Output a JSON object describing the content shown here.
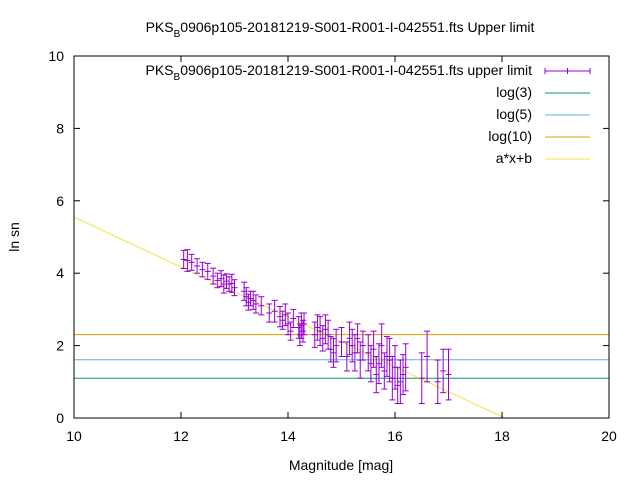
{
  "chart_data": {
    "type": "scatter",
    "title": {
      "prefix": "PKS",
      "sub": "B",
      "suffix": "0906p105-20181219-S001-R001-I-042551.fts Upper limit"
    },
    "xlabel": "Magnitude [mag]",
    "ylabel": "ln sn",
    "xlim": [
      10,
      20
    ],
    "ylim": [
      0,
      10
    ],
    "x_ticks": [
      "10",
      "12",
      "14",
      "16",
      "18",
      "20"
    ],
    "y_ticks": [
      "0",
      "2",
      "4",
      "6",
      "8",
      "10"
    ],
    "grid": false,
    "legend_position": "top-right",
    "series": [
      {
        "name": {
          "prefix": "PKS",
          "sub": "B",
          "suffix": "0906p105-20181219-S001-R001-I-042551.fts upper limit"
        },
        "kind": "errorbar",
        "color": "#9400d3",
        "points": [
          [
            12.05,
            4.38,
            0.25
          ],
          [
            12.12,
            4.35,
            0.3
          ],
          [
            12.2,
            4.3,
            0.22
          ],
          [
            12.3,
            4.2,
            0.2
          ],
          [
            12.4,
            4.1,
            0.2
          ],
          [
            12.5,
            4.05,
            0.22
          ],
          [
            12.6,
            3.92,
            0.22
          ],
          [
            12.68,
            3.8,
            0.2
          ],
          [
            12.75,
            3.85,
            0.22
          ],
          [
            12.8,
            3.7,
            0.25
          ],
          [
            12.85,
            3.78,
            0.2
          ],
          [
            12.9,
            3.7,
            0.2
          ],
          [
            12.95,
            3.72,
            0.25
          ],
          [
            13.0,
            3.6,
            0.22
          ],
          [
            13.18,
            3.5,
            0.25
          ],
          [
            13.22,
            3.35,
            0.25
          ],
          [
            13.26,
            3.2,
            0.22
          ],
          [
            13.3,
            3.3,
            0.2
          ],
          [
            13.35,
            3.25,
            0.25
          ],
          [
            13.4,
            3.15,
            0.25
          ],
          [
            13.5,
            3.1,
            0.25
          ],
          [
            13.65,
            2.9,
            0.25
          ],
          [
            13.75,
            2.95,
            0.3
          ],
          [
            13.85,
            2.8,
            0.28
          ],
          [
            13.9,
            2.7,
            0.25
          ],
          [
            13.95,
            2.85,
            0.3
          ],
          [
            14.0,
            2.6,
            0.3
          ],
          [
            14.05,
            2.4,
            0.25
          ],
          [
            14.1,
            2.75,
            0.25
          ],
          [
            14.2,
            2.5,
            0.3
          ],
          [
            14.22,
            2.3,
            0.3
          ],
          [
            14.25,
            2.55,
            0.35
          ],
          [
            14.28,
            2.4,
            0.3
          ],
          [
            14.3,
            2.6,
            0.3
          ],
          [
            14.5,
            2.3,
            0.35
          ],
          [
            14.55,
            2.5,
            0.35
          ],
          [
            14.6,
            2.4,
            0.4
          ],
          [
            14.65,
            2.2,
            0.35
          ],
          [
            14.7,
            2.45,
            0.4
          ],
          [
            14.75,
            2.3,
            0.4
          ],
          [
            14.8,
            1.9,
            0.35
          ],
          [
            14.85,
            1.8,
            0.4
          ],
          [
            14.9,
            2.0,
            0.45
          ],
          [
            15.0,
            2.1,
            0.4
          ],
          [
            15.1,
            1.7,
            0.4
          ],
          [
            15.15,
            2.2,
            0.45
          ],
          [
            15.2,
            2.0,
            0.45
          ],
          [
            15.25,
            1.8,
            0.5
          ],
          [
            15.3,
            2.2,
            0.4
          ],
          [
            15.35,
            1.6,
            0.5
          ],
          [
            15.4,
            2.0,
            0.4
          ],
          [
            15.5,
            1.8,
            0.5
          ],
          [
            15.55,
            1.5,
            0.5
          ],
          [
            15.6,
            1.9,
            0.5
          ],
          [
            15.65,
            1.2,
            0.5
          ],
          [
            15.7,
            1.5,
            0.55
          ],
          [
            15.75,
            2.0,
            0.6
          ],
          [
            15.8,
            1.3,
            0.5
          ],
          [
            15.85,
            1.7,
            0.55
          ],
          [
            15.9,
            1.6,
            0.6
          ],
          [
            15.95,
            1.1,
            0.6
          ],
          [
            16.0,
            1.4,
            0.6
          ],
          [
            16.05,
            0.9,
            0.5
          ],
          [
            16.1,
            1.0,
            0.6
          ],
          [
            16.15,
            1.2,
            0.55
          ],
          [
            16.2,
            1.4,
            0.65
          ],
          [
            16.5,
            1.1,
            0.7
          ],
          [
            16.6,
            1.7,
            0.7
          ],
          [
            16.8,
            1.0,
            0.6
          ],
          [
            16.9,
            1.3,
            0.6
          ],
          [
            17.0,
            1.2,
            0.7
          ]
        ]
      },
      {
        "name": "log(3)",
        "kind": "hline",
        "color": "#009e73",
        "y": 1.0986
      },
      {
        "name": "log(5)",
        "kind": "hline",
        "color": "#56b4e9",
        "y": 1.6094
      },
      {
        "name": "log(10)",
        "kind": "hline",
        "color": "#e69f00",
        "y": 2.3026
      },
      {
        "name": "a*x+b",
        "kind": "fit",
        "color": "#f0e442",
        "x": [
          10,
          18.05
        ],
        "y": [
          5.55,
          0
        ]
      }
    ]
  }
}
